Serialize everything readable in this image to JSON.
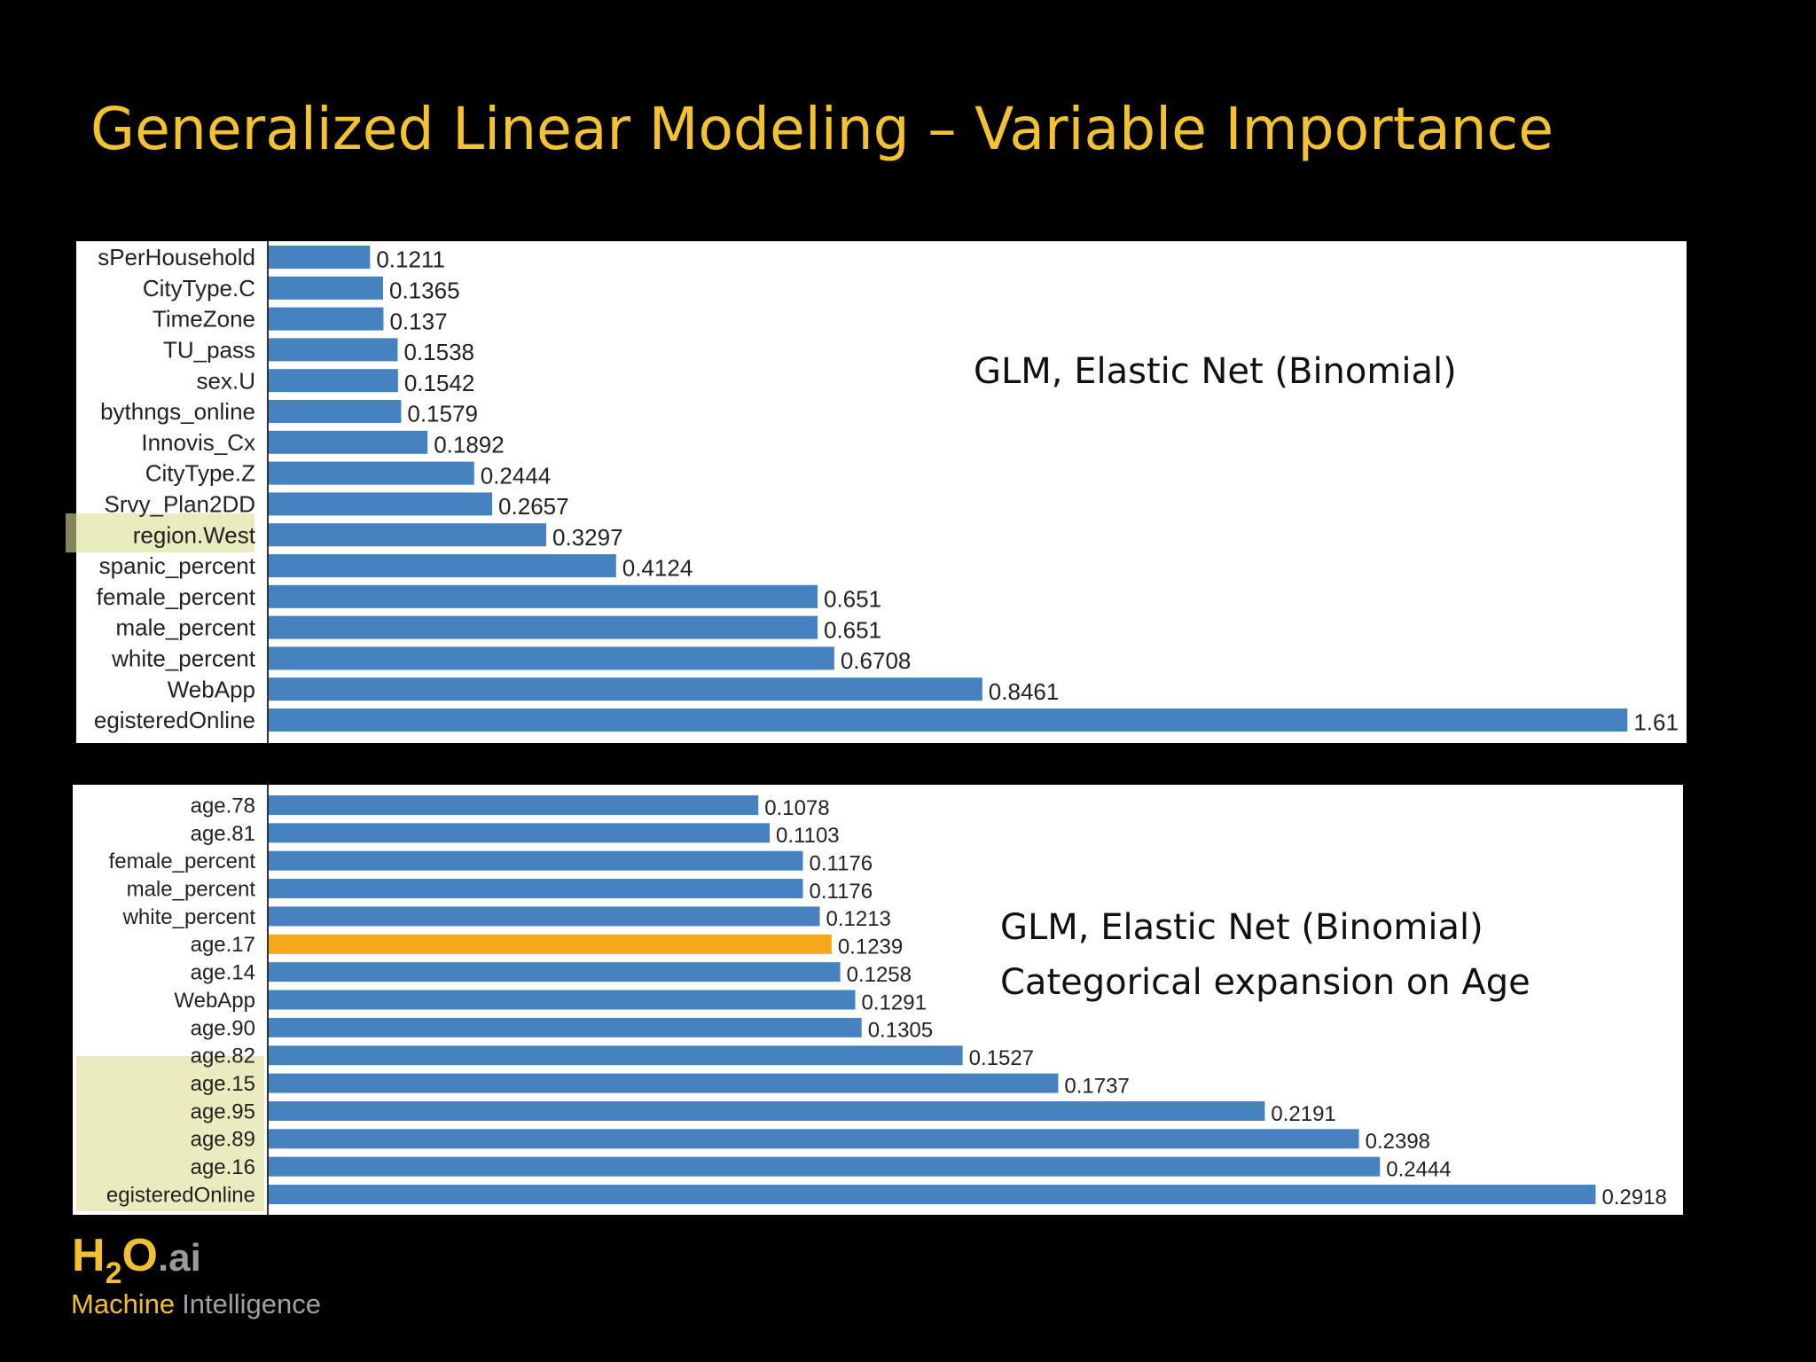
{
  "title": "Generalized Linear Modeling – Variable Importance",
  "chart_data": [
    {
      "type": "bar",
      "orientation": "horizontal",
      "categories": [
        "sPerHousehold",
        "CityType.C",
        "TimeZone",
        "TU_pass",
        "sex.U",
        "bythngs_online",
        "Innovis_Cx",
        "CityType.Z",
        "Srvy_Plan2DD",
        "region.West",
        "spanic_percent",
        "female_percent",
        "male_percent",
        "white_percent",
        "WebApp",
        "egisteredOnline"
      ],
      "values": [
        0.1211,
        0.1365,
        0.137,
        0.1538,
        0.1542,
        0.1579,
        0.1892,
        0.2444,
        0.2657,
        0.3297,
        0.4124,
        0.651,
        0.651,
        0.6708,
        0.8461,
        1.61
      ],
      "colors": [
        "#4682c0",
        "#4682c0",
        "#4682c0",
        "#4682c0",
        "#4682c0",
        "#4682c0",
        "#4682c0",
        "#4682c0",
        "#4682c0",
        "#4682c0",
        "#4682c0",
        "#4682c0",
        "#4682c0",
        "#4682c0",
        "#4682c0",
        "#4682c0"
      ],
      "xlim": [
        0,
        1.68
      ],
      "annotations": [
        "GLM, Elastic Net (Binomial)"
      ]
    },
    {
      "type": "bar",
      "orientation": "horizontal",
      "categories": [
        "age.78",
        "age.81",
        "female_percent",
        "male_percent",
        "white_percent",
        "age.17",
        "age.14",
        "WebApp",
        "age.90",
        "age.82",
        "age.15",
        "age.95",
        "age.89",
        "age.16",
        "egisteredOnline"
      ],
      "values": [
        0.1078,
        0.1103,
        0.1176,
        0.1176,
        0.1213,
        0.1239,
        0.1258,
        0.1291,
        0.1305,
        0.1527,
        0.1737,
        0.2191,
        0.2398,
        0.2444,
        0.2918
      ],
      "colors": [
        "#4682c0",
        "#4682c0",
        "#4682c0",
        "#4682c0",
        "#4682c0",
        "#f5a81c",
        "#4682c0",
        "#4682c0",
        "#4682c0",
        "#4682c0",
        "#4682c0",
        "#4682c0",
        "#4682c0",
        "#4682c0",
        "#4682c0"
      ],
      "xlim": [
        0,
        0.311
      ],
      "annotations": [
        "GLM, Elastic Net (Binomial)",
        "Categorical expansion on Age"
      ]
    }
  ],
  "logo": {
    "h": "H",
    "sub": "2",
    "o": "O",
    "ai": ".ai",
    "line1": "Machine",
    "line2": "Intelligence"
  }
}
